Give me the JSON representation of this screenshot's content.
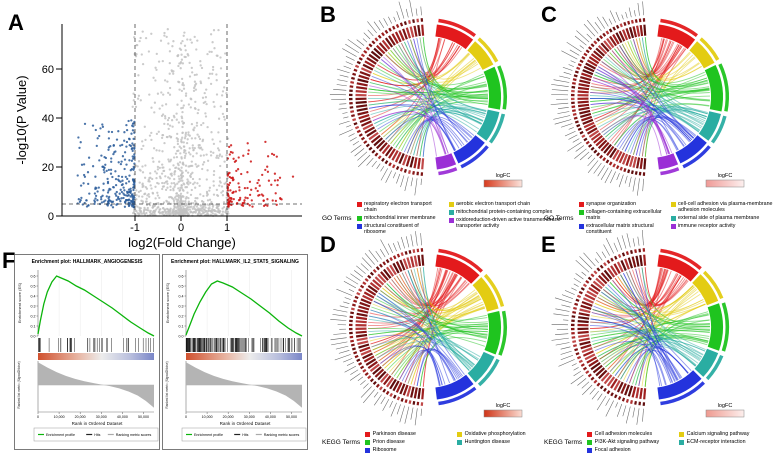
{
  "panel_labels": {
    "a": "A",
    "b": "B",
    "c": "C",
    "d": "D",
    "e": "E",
    "f": "F"
  },
  "chart_data": [
    {
      "panel": "A",
      "type": "scatter",
      "subtype": "volcano",
      "xlabel": "log2(Fold Change)",
      "ylabel": "-log10(P Value)",
      "xlim": [
        -2.6,
        2.6
      ],
      "ylim": [
        0,
        78
      ],
      "xticks": [
        "-1",
        "0",
        "1"
      ],
      "yticks": [
        "0",
        "20",
        "40",
        "60"
      ],
      "fold_change_cutoffs": [
        -1,
        1
      ],
      "pvalue_cutoff_line": 5,
      "groups": [
        {
          "name": "downregulated",
          "color": "#2b5d9b",
          "approx_count": 270
        },
        {
          "name": "not significant",
          "color": "#c2c2c2",
          "approx_count": 950
        },
        {
          "name": "upregulated",
          "color": "#cc1414",
          "approx_count": 130
        }
      ]
    },
    {
      "panel": "B",
      "type": "chord",
      "legend_title": "GO Terms",
      "logfc_label": "logFC",
      "gradient": [
        "#d73a1d",
        "#fbe4dd"
      ],
      "gene_ticks": 56,
      "categories": [
        {
          "label": "respiratory electron transport chain",
          "color": "#e31a1c",
          "weight": 0.2
        },
        {
          "label": "aerobic electron transport chain",
          "color": "#e3cc12",
          "weight": 0.15
        },
        {
          "label": "mitochondrial inner membrane",
          "color": "#1fc41f",
          "weight": 0.22
        },
        {
          "label": "mitochondrial protein-containing complex",
          "color": "#2aada2",
          "weight": 0.16
        },
        {
          "label": "structural constituent of ribosome",
          "color": "#2433dd",
          "weight": 0.17
        },
        {
          "label": "oxidoreduction-driven active transmembrane transporter activity",
          "color": "#9b2fd6",
          "weight": 0.1
        }
      ]
    },
    {
      "panel": "C",
      "type": "chord",
      "legend_title": "GO Terms",
      "logfc_label": "logFC",
      "gradient": [
        "#ef9a96",
        "#fdf0ef"
      ],
      "gene_ticks": 60,
      "categories": [
        {
          "label": "synapse organization",
          "color": "#e31a1c",
          "weight": 0.2
        },
        {
          "label": "cell-cell adhesion via plasma-membrane adhesion molecules",
          "color": "#e3cc12",
          "weight": 0.14
        },
        {
          "label": "collagen-containing extracellular matrix",
          "color": "#1fc41f",
          "weight": 0.24
        },
        {
          "label": "external side of plasma membrane",
          "color": "#2aada2",
          "weight": 0.15
        },
        {
          "label": "extracellular matrix structural constituent",
          "color": "#2433dd",
          "weight": 0.17
        },
        {
          "label": "immune receptor activity",
          "color": "#9b2fd6",
          "weight": 0.1
        }
      ]
    },
    {
      "panel": "D",
      "type": "chord",
      "legend_title": "KEGG Terms",
      "logfc_label": "logFC",
      "gradient": [
        "#cf3417",
        "#fbdcd2"
      ],
      "gene_ticks": 58,
      "categories": [
        {
          "label": "Parkinson disease",
          "color": "#e31a1c",
          "weight": 0.24
        },
        {
          "label": "Oxidative phosphorylation",
          "color": "#e3cc12",
          "weight": 0.18
        },
        {
          "label": "Prion disease",
          "color": "#1fc41f",
          "weight": 0.22
        },
        {
          "label": "Huntington disease",
          "color": "#2aada2",
          "weight": 0.16
        },
        {
          "label": "Ribosome",
          "color": "#2433dd",
          "weight": 0.2
        }
      ]
    },
    {
      "panel": "E",
      "type": "chord",
      "legend_title": "KEGG Terms",
      "logfc_label": "logFC",
      "gradient": [
        "#ee9a90",
        "#fdefed"
      ],
      "gene_ticks": 56,
      "categories": [
        {
          "label": "Cell adhesion molecules",
          "color": "#e31a1c",
          "weight": 0.22
        },
        {
          "label": "Calcium signaling pathway",
          "color": "#e3cc12",
          "weight": 0.16
        },
        {
          "label": "PI3K-Akt signaling pathway",
          "color": "#1fc41f",
          "weight": 0.24
        },
        {
          "label": "ECM-receptor interaction",
          "color": "#2aada2",
          "weight": 0.14
        },
        {
          "label": "Focal adhesion",
          "color": "#2433dd",
          "weight": 0.24
        }
      ]
    },
    {
      "panel": "F",
      "type": "line",
      "subtype": "gsea",
      "ylabel_top": "Enrichment score (ES)",
      "ylabel_bottom": "Ranked list metric (Signal2Noise)",
      "xlabel": "Rank in Ordered Dataset",
      "xticks": [
        "0",
        "10,000",
        "20,000",
        "30,000",
        "40,000",
        "50,000"
      ],
      "yticks": [
        "0.0",
        "0.1",
        "0.2",
        "0.3",
        "0.4",
        "0.5",
        "0.6"
      ],
      "legend": [
        "Enrichment profile",
        "Hits",
        "Ranking metric scores"
      ],
      "ranked_metric": [
        [
          0,
          3.0
        ],
        [
          0.08,
          2.3
        ],
        [
          0.16,
          1.7
        ],
        [
          0.24,
          1.2
        ],
        [
          0.32,
          0.8
        ],
        [
          0.4,
          0.5
        ],
        [
          0.48,
          0.25
        ],
        [
          0.55,
          0.05
        ],
        [
          0.62,
          -0.15
        ],
        [
          0.7,
          -0.45
        ],
        [
          0.78,
          -0.85
        ],
        [
          0.86,
          -1.4
        ],
        [
          0.93,
          -2.1
        ],
        [
          1,
          -3.0
        ]
      ],
      "plots": [
        {
          "title": "Enrichment plot: HALLMARK_ANGIOGENESIS",
          "peak_es": 0.6,
          "hits_count": 42,
          "es_curve": [
            [
              0,
              0.02
            ],
            [
              0.02,
              0.15
            ],
            [
              0.05,
              0.32
            ],
            [
              0.08,
              0.44
            ],
            [
              0.12,
              0.54
            ],
            [
              0.16,
              0.6
            ],
            [
              0.2,
              0.58
            ],
            [
              0.26,
              0.55
            ],
            [
              0.33,
              0.5
            ],
            [
              0.4,
              0.46
            ],
            [
              0.48,
              0.4
            ],
            [
              0.56,
              0.34
            ],
            [
              0.64,
              0.28
            ],
            [
              0.72,
              0.21
            ],
            [
              0.8,
              0.14
            ],
            [
              0.88,
              0.08
            ],
            [
              0.95,
              0.03
            ],
            [
              1,
              0
            ]
          ]
        },
        {
          "title": "Enrichment plot: HALLMARK_IL2_STAT5_SIGNALING",
          "peak_es": 0.55,
          "hits_count": 160,
          "es_curve": [
            [
              0,
              0.01
            ],
            [
              0.03,
              0.1
            ],
            [
              0.07,
              0.22
            ],
            [
              0.12,
              0.34
            ],
            [
              0.17,
              0.44
            ],
            [
              0.22,
              0.52
            ],
            [
              0.27,
              0.55
            ],
            [
              0.32,
              0.53
            ],
            [
              0.4,
              0.49
            ],
            [
              0.48,
              0.43
            ],
            [
              0.56,
              0.37
            ],
            [
              0.64,
              0.3
            ],
            [
              0.72,
              0.23
            ],
            [
              0.8,
              0.15
            ],
            [
              0.88,
              0.08
            ],
            [
              0.95,
              0.03
            ],
            [
              1,
              0
            ]
          ]
        }
      ]
    }
  ]
}
